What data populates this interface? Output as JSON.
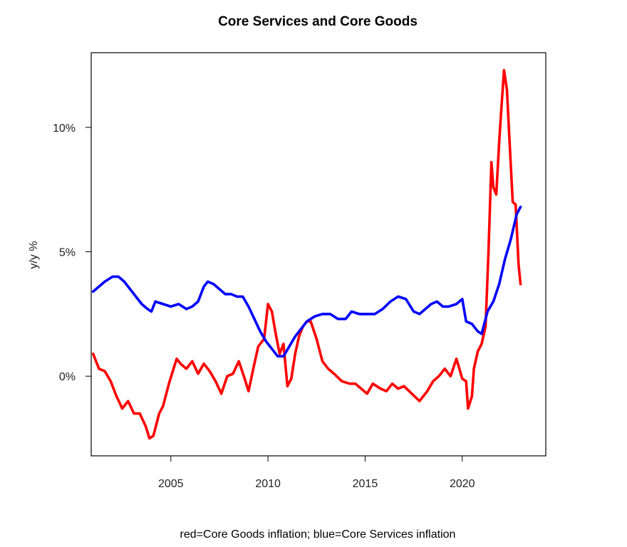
{
  "chart_data": {
    "type": "line",
    "title": "Core Services and Core Goods",
    "xlabel": "red=Core Goods inflation; blue=Core Services inflation",
    "ylabel": "y/y %",
    "xlim": [
      2000.9,
      2024.3
    ],
    "ylim": [
      -3.2,
      13.0
    ],
    "x_ticks": [
      2005,
      2010,
      2015,
      2020
    ],
    "x_tick_labels": [
      "2005",
      "2010",
      "2015",
      "2020"
    ],
    "y_ticks": [
      0,
      5,
      10
    ],
    "y_tick_labels": [
      "0%",
      "5%",
      "10%"
    ],
    "grid": false,
    "legend": "none",
    "series": [
      {
        "color": "#ff0000",
        "points": [
          [
            2001.0,
            0.9
          ],
          [
            2001.3,
            0.3
          ],
          [
            2001.6,
            0.2
          ],
          [
            2001.9,
            -0.2
          ],
          [
            2002.2,
            -0.8
          ],
          [
            2002.5,
            -1.3
          ],
          [
            2002.8,
            -1.0
          ],
          [
            2003.1,
            -1.5
          ],
          [
            2003.4,
            -1.5
          ],
          [
            2003.7,
            -2.0
          ],
          [
            2003.9,
            -2.5
          ],
          [
            2004.1,
            -2.4
          ],
          [
            2004.4,
            -1.5
          ],
          [
            2004.6,
            -1.2
          ],
          [
            2004.9,
            -0.3
          ],
          [
            2005.1,
            0.2
          ],
          [
            2005.3,
            0.7
          ],
          [
            2005.5,
            0.5
          ],
          [
            2005.8,
            0.3
          ],
          [
            2006.1,
            0.6
          ],
          [
            2006.4,
            0.1
          ],
          [
            2006.7,
            0.5
          ],
          [
            2007.0,
            0.2
          ],
          [
            2007.3,
            -0.2
          ],
          [
            2007.6,
            -0.7
          ],
          [
            2007.9,
            0.0
          ],
          [
            2008.2,
            0.1
          ],
          [
            2008.5,
            0.6
          ],
          [
            2008.8,
            -0.1
          ],
          [
            2009.0,
            -0.6
          ],
          [
            2009.3,
            0.5
          ],
          [
            2009.5,
            1.2
          ],
          [
            2009.8,
            1.5
          ],
          [
            2010.0,
            2.9
          ],
          [
            2010.2,
            2.6
          ],
          [
            2010.4,
            1.7
          ],
          [
            2010.6,
            0.9
          ],
          [
            2010.8,
            1.3
          ],
          [
            2011.0,
            -0.4
          ],
          [
            2011.2,
            -0.1
          ],
          [
            2011.4,
            0.9
          ],
          [
            2011.6,
            1.6
          ],
          [
            2011.8,
            2.0
          ],
          [
            2012.0,
            2.2
          ],
          [
            2012.2,
            2.2
          ],
          [
            2012.5,
            1.5
          ],
          [
            2012.8,
            0.6
          ],
          [
            2013.1,
            0.3
          ],
          [
            2013.4,
            0.1
          ],
          [
            2013.8,
            -0.2
          ],
          [
            2014.2,
            -0.3
          ],
          [
            2014.5,
            -0.3
          ],
          [
            2014.8,
            -0.5
          ],
          [
            2015.1,
            -0.7
          ],
          [
            2015.4,
            -0.3
          ],
          [
            2015.8,
            -0.5
          ],
          [
            2016.1,
            -0.6
          ],
          [
            2016.4,
            -0.3
          ],
          [
            2016.7,
            -0.5
          ],
          [
            2017.0,
            -0.4
          ],
          [
            2017.4,
            -0.7
          ],
          [
            2017.8,
            -1.0
          ],
          [
            2018.2,
            -0.6
          ],
          [
            2018.5,
            -0.2
          ],
          [
            2018.8,
            0.0
          ],
          [
            2019.1,
            0.3
          ],
          [
            2019.4,
            0.0
          ],
          [
            2019.7,
            0.7
          ],
          [
            2020.0,
            -0.1
          ],
          [
            2020.2,
            -0.2
          ],
          [
            2020.3,
            -1.3
          ],
          [
            2020.5,
            -0.8
          ],
          [
            2020.6,
            0.3
          ],
          [
            2020.8,
            1.0
          ],
          [
            2021.0,
            1.3
          ],
          [
            2021.2,
            2.0
          ],
          [
            2021.35,
            5.0
          ],
          [
            2021.5,
            8.6
          ],
          [
            2021.6,
            7.6
          ],
          [
            2021.75,
            7.3
          ],
          [
            2021.9,
            9.4
          ],
          [
            2022.0,
            10.6
          ],
          [
            2022.15,
            12.3
          ],
          [
            2022.3,
            11.5
          ],
          [
            2022.45,
            9.2
          ],
          [
            2022.6,
            7.0
          ],
          [
            2022.75,
            6.9
          ],
          [
            2022.9,
            4.5
          ],
          [
            2023.0,
            3.7
          ]
        ]
      },
      {
        "color": "#0000ff",
        "points": [
          [
            2001.0,
            3.4
          ],
          [
            2001.3,
            3.6
          ],
          [
            2001.6,
            3.8
          ],
          [
            2002.0,
            4.0
          ],
          [
            2002.3,
            4.0
          ],
          [
            2002.6,
            3.8
          ],
          [
            2002.9,
            3.5
          ],
          [
            2003.2,
            3.2
          ],
          [
            2003.5,
            2.9
          ],
          [
            2003.8,
            2.7
          ],
          [
            2004.0,
            2.6
          ],
          [
            2004.2,
            3.0
          ],
          [
            2004.6,
            2.9
          ],
          [
            2005.0,
            2.8
          ],
          [
            2005.4,
            2.9
          ],
          [
            2005.8,
            2.7
          ],
          [
            2006.1,
            2.8
          ],
          [
            2006.4,
            3.0
          ],
          [
            2006.7,
            3.6
          ],
          [
            2006.9,
            3.8
          ],
          [
            2007.2,
            3.7
          ],
          [
            2007.5,
            3.5
          ],
          [
            2007.8,
            3.3
          ],
          [
            2008.1,
            3.3
          ],
          [
            2008.4,
            3.2
          ],
          [
            2008.7,
            3.2
          ],
          [
            2009.0,
            2.8
          ],
          [
            2009.3,
            2.3
          ],
          [
            2009.6,
            1.8
          ],
          [
            2009.9,
            1.4
          ],
          [
            2010.2,
            1.1
          ],
          [
            2010.5,
            0.8
          ],
          [
            2010.8,
            0.8
          ],
          [
            2011.1,
            1.2
          ],
          [
            2011.4,
            1.6
          ],
          [
            2011.7,
            1.9
          ],
          [
            2012.0,
            2.2
          ],
          [
            2012.4,
            2.4
          ],
          [
            2012.8,
            2.5
          ],
          [
            2013.2,
            2.5
          ],
          [
            2013.6,
            2.3
          ],
          [
            2014.0,
            2.3
          ],
          [
            2014.3,
            2.6
          ],
          [
            2014.7,
            2.5
          ],
          [
            2015.1,
            2.5
          ],
          [
            2015.5,
            2.5
          ],
          [
            2015.9,
            2.7
          ],
          [
            2016.3,
            3.0
          ],
          [
            2016.7,
            3.2
          ],
          [
            2017.1,
            3.1
          ],
          [
            2017.5,
            2.6
          ],
          [
            2017.8,
            2.5
          ],
          [
            2018.1,
            2.7
          ],
          [
            2018.4,
            2.9
          ],
          [
            2018.7,
            3.0
          ],
          [
            2019.0,
            2.8
          ],
          [
            2019.3,
            2.8
          ],
          [
            2019.7,
            2.9
          ],
          [
            2020.0,
            3.1
          ],
          [
            2020.2,
            2.2
          ],
          [
            2020.5,
            2.1
          ],
          [
            2020.8,
            1.8
          ],
          [
            2021.0,
            1.7
          ],
          [
            2021.3,
            2.6
          ],
          [
            2021.6,
            3.0
          ],
          [
            2021.9,
            3.7
          ],
          [
            2022.2,
            4.7
          ],
          [
            2022.5,
            5.5
          ],
          [
            2022.8,
            6.5
          ],
          [
            2023.0,
            6.8
          ]
        ]
      }
    ]
  }
}
